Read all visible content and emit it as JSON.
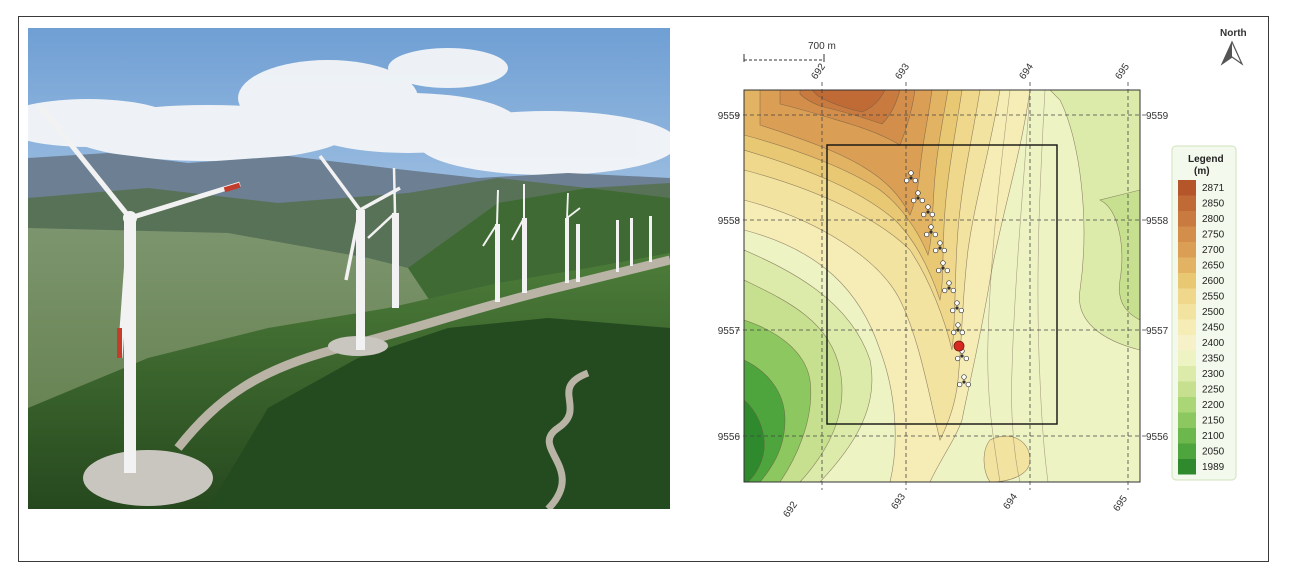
{
  "map": {
    "scale_label": "700 m",
    "north_label": "North",
    "x_ticks": [
      "692",
      "693",
      "694",
      "695"
    ],
    "y_ticks": [
      "9559",
      "9558",
      "9557",
      "9556"
    ],
    "legend": {
      "title": "Legend",
      "unit": "(m)",
      "entries": [
        "2871",
        "2850",
        "2800",
        "2750",
        "2700",
        "2650",
        "2600",
        "2550",
        "2500",
        "2450",
        "2400",
        "2350",
        "2300",
        "2250",
        "2200",
        "2150",
        "2100",
        "2050",
        "1989"
      ],
      "colors": [
        "#b5562a",
        "#c06a35",
        "#c97a3e",
        "#d28e4a",
        "#da9f55",
        "#e2b362",
        "#e9c874",
        "#efd88b",
        "#f3e3a0",
        "#f6ecb6",
        "#f7f1c9",
        "#eef3c4",
        "#dcebaa",
        "#c6e08f",
        "#aad676",
        "#8cc85f",
        "#6cb84c",
        "#4fa53d",
        "#2f8a2e"
      ]
    },
    "colors": {
      "turbine": "#ffffff",
      "marker": "#d42a1f",
      "boundary": "#111111"
    }
  }
}
